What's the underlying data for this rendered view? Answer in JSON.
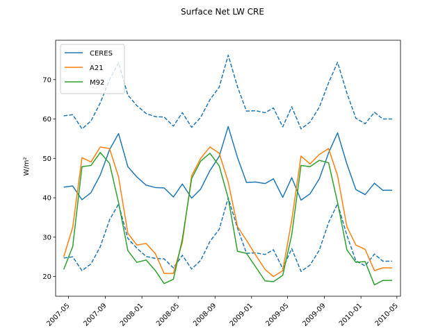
{
  "chart_data": {
    "type": "line",
    "title": "Surface Net LW CRE",
    "xlabel": "",
    "ylabel": "W/m²",
    "ylim": [
      15,
      80
    ],
    "xlim": [
      "2007-03-19",
      "2010-05-13"
    ],
    "x_ticks": [
      "2007-05",
      "2007-09",
      "2008-01",
      "2008-05",
      "2008-09",
      "2009-01",
      "2009-05",
      "2009-09",
      "2010-01",
      "2010-05"
    ],
    "y_ticks": [
      20,
      30,
      40,
      50,
      60,
      70
    ],
    "legend_position": "top-left",
    "dates": [
      "2007-04-15",
      "2007-05-15",
      "2007-06-15",
      "2007-07-15",
      "2007-08-15",
      "2007-09-15",
      "2007-10-15",
      "2007-11-15",
      "2007-12-15",
      "2008-01-15",
      "2008-02-15",
      "2008-03-15",
      "2008-04-15",
      "2008-05-15",
      "2008-06-15",
      "2008-07-15",
      "2008-08-15",
      "2008-09-15",
      "2008-10-15",
      "2008-11-15",
      "2008-12-15",
      "2009-01-15",
      "2009-02-15",
      "2009-03-15",
      "2009-04-15",
      "2009-05-15",
      "2009-06-15",
      "2009-07-15",
      "2009-08-15",
      "2009-09-15",
      "2009-10-15",
      "2009-11-15",
      "2009-12-15",
      "2010-01-15",
      "2010-02-15",
      "2010-03-15",
      "2010-04-15"
    ],
    "series": [
      {
        "name": "CERES",
        "color": "#1f77b4",
        "style": "solid",
        "values": [
          42.7,
          43.0,
          39.5,
          41.3,
          45.8,
          52.2,
          56.3,
          47.9,
          45.3,
          43.2,
          42.6,
          42.5,
          40.2,
          43.5,
          39.9,
          42.2,
          46.9,
          50.5,
          58.1,
          50.2,
          43.9,
          44.0,
          43.6,
          44.8,
          40.1,
          45.1,
          39.4,
          41.0,
          44.8,
          51.4,
          56.5,
          48.6,
          42.1,
          40.8,
          43.7,
          41.9,
          41.9
        ]
      },
      {
        "name": "",
        "color": "#1f77b4",
        "style": "dashed",
        "values": [
          60.8,
          61.1,
          57.5,
          59.5,
          64.1,
          70.0,
          74.3,
          66.1,
          63.4,
          61.4,
          60.6,
          60.5,
          58.2,
          61.6,
          57.9,
          60.4,
          64.9,
          68.1,
          76.2,
          68.2,
          62.0,
          62.1,
          61.6,
          62.8,
          58.0,
          63.1,
          57.5,
          59.2,
          63.0,
          69.2,
          74.4,
          66.6,
          60.2,
          58.8,
          61.7,
          60.0,
          60.0
        ]
      },
      {
        "name": "",
        "color": "#1f77b4",
        "style": "dashed",
        "values": [
          24.7,
          25.0,
          21.5,
          23.2,
          27.6,
          34.4,
          38.4,
          29.7,
          27.2,
          25.1,
          24.6,
          24.5,
          22.2,
          25.4,
          21.9,
          24.1,
          28.9,
          32.0,
          40.0,
          32.3,
          25.9,
          26.0,
          25.6,
          26.8,
          22.0,
          27.1,
          21.3,
          22.9,
          26.7,
          33.7,
          38.5,
          30.5,
          24.0,
          22.7,
          25.7,
          23.9,
          23.9
        ]
      },
      {
        "name": "A21",
        "color": "#ff7f0e",
        "style": "solid",
        "values": [
          25.0,
          32.5,
          50.2,
          49.1,
          52.9,
          52.5,
          45.3,
          31.0,
          28.0,
          28.4,
          25.8,
          20.8,
          20.8,
          28.7,
          45.6,
          50.0,
          52.9,
          51.3,
          44.0,
          32.7,
          29.2,
          25.4,
          21.8,
          20.0,
          21.5,
          34.3,
          50.6,
          48.6,
          51.0,
          52.5,
          45.6,
          32.7,
          28.0,
          26.9,
          21.5,
          22.2,
          22.2
        ]
      },
      {
        "name": "M92",
        "color": "#2ca02c",
        "style": "solid",
        "values": [
          21.8,
          27.6,
          47.9,
          48.2,
          51.5,
          48.7,
          38.8,
          26.6,
          23.6,
          24.2,
          21.5,
          18.2,
          19.3,
          29.5,
          44.9,
          49.3,
          51.3,
          48.1,
          39.9,
          26.4,
          25.9,
          22.4,
          18.9,
          18.7,
          20.3,
          30.6,
          48.2,
          47.9,
          49.5,
          48.9,
          38.8,
          26.8,
          23.6,
          23.8,
          17.9,
          19.0,
          19.0
        ]
      }
    ]
  }
}
